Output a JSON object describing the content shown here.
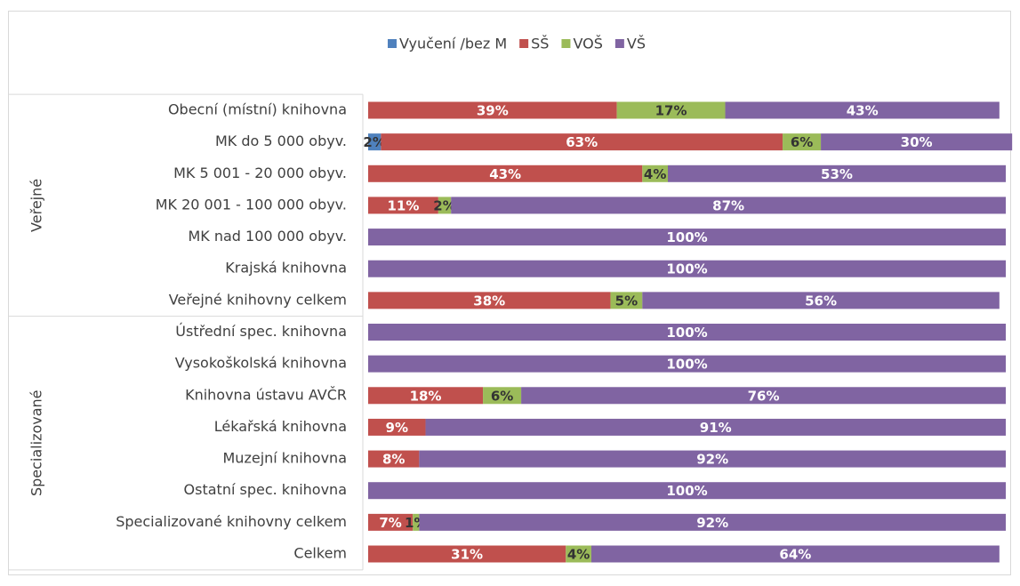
{
  "chart_data": {
    "type": "stacked-barh",
    "categories": [
      "Obecní (místní) knihovna",
      "MK do 5 000 obyv.",
      "MK  5 001 - 20 000 obyv.",
      "MK 20 001 - 100 000 obyv.",
      "MK nad 100 000 obyv.",
      "Krajská knihovna",
      "Veřejné knihovny celkem",
      "Ústřední spec. knihovna",
      "Vysokoškolská knihovna",
      "Knihovna ústavu AVČR",
      "Lékařská knihovna",
      "Muzejní knihovna",
      "Ostatní spec. knihovna",
      "Specializované knihovny celkem",
      "Celkem"
    ],
    "groups": [
      {
        "name": "Veřejné",
        "start": 0,
        "end": 6
      },
      {
        "name": "Specializované",
        "start": 7,
        "end": 14
      }
    ],
    "xlim": [
      0,
      100
    ],
    "legend": "top",
    "series": [
      {
        "name": "Vyučení /bez M",
        "color": "#4f81bd",
        "values": [
          0,
          2,
          0,
          0,
          0,
          0,
          0,
          0,
          0,
          0,
          0,
          0,
          0,
          0,
          0
        ],
        "value_labels": [
          null,
          "2%",
          null,
          null,
          null,
          null,
          null,
          null,
          null,
          null,
          null,
          null,
          null,
          null,
          null
        ]
      },
      {
        "name": "SŠ",
        "color": "#c0504d",
        "values": [
          39,
          63,
          43,
          11,
          0,
          0,
          38,
          0,
          0,
          18,
          9,
          8,
          0,
          7,
          31
        ],
        "value_labels": [
          "39%",
          "63%",
          "43%",
          "11%",
          null,
          null,
          "38%",
          null,
          null,
          "18%",
          "9%",
          "8%",
          null,
          "7%",
          "31%"
        ]
      },
      {
        "name": "VOŠ",
        "color": "#9bbb59",
        "values": [
          17,
          6,
          4,
          2,
          0,
          0,
          5,
          0,
          0,
          6,
          0,
          0,
          0,
          1,
          4
        ],
        "value_labels": [
          "17%",
          "6%",
          "4%",
          "2%",
          null,
          null,
          "5%",
          null,
          null,
          "6%",
          null,
          null,
          null,
          "1%",
          "4%"
        ]
      },
      {
        "name": "VŠ",
        "color": "#8064a2",
        "values": [
          43,
          30,
          53,
          87,
          100,
          100,
          56,
          100,
          100,
          76,
          91,
          92,
          100,
          92,
          64
        ],
        "value_labels": [
          "43%",
          "30%",
          "53%",
          "87%",
          "100%",
          "100%",
          "56%",
          "100%",
          "100%",
          "76%",
          "91%",
          "92%",
          "100%",
          "92%",
          "64%"
        ]
      }
    ]
  }
}
